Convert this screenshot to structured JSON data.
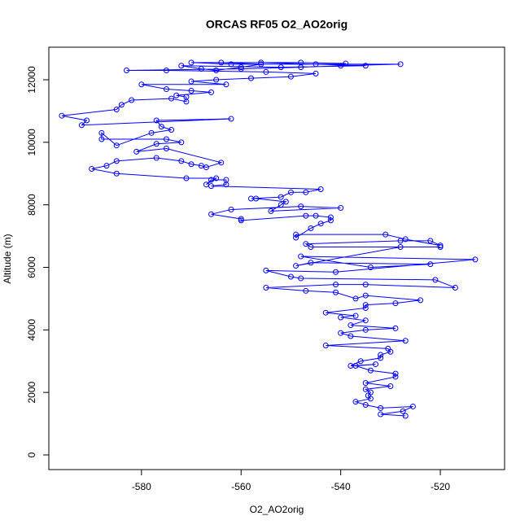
{
  "chart_data": {
    "type": "line",
    "title": "ORCAS RF05 O2_AO2orig",
    "x_label": "O2_AO2orig",
    "y_label": "Altitude (m)",
    "color": "blue",
    "markers": true,
    "xlim": [
      -598.6,
      -507.1
    ],
    "ylim": [
      -469,
      13042
    ],
    "xticks": [
      -580,
      -560,
      -540,
      -520
    ],
    "yticks": [
      0,
      2000,
      4000,
      6000,
      8000,
      10000,
      12000
    ],
    "x": [
      -527,
      -532,
      -527.5,
      -525.5,
      -532,
      -535,
      -537,
      -534,
      -534.5,
      -534,
      -535,
      -530,
      -535,
      -529,
      -529,
      -534,
      -537,
      -533,
      -538,
      -536,
      -532,
      -532,
      -530,
      -530.5,
      -543,
      -527,
      -538,
      -540,
      -535,
      -529,
      -538,
      -535,
      -540,
      -537,
      -543,
      -535,
      -535,
      -529,
      -524,
      -535,
      -537,
      -541,
      -547,
      -555,
      -541,
      -535,
      -517,
      -521,
      -548,
      -550,
      -555,
      -541,
      -513,
      -548,
      -534,
      -522,
      -546,
      -549,
      -528,
      -520,
      -546,
      -547,
      -528,
      -522,
      -520,
      -527,
      -531,
      -549,
      -549,
      -546,
      -544,
      -542,
      -542,
      -545,
      -547,
      -560,
      -560,
      -566,
      -562,
      -548,
      -540,
      -554,
      -552,
      -551,
      -557,
      -558,
      -552,
      -550,
      -547,
      -544,
      -566,
      -563,
      -563,
      -566,
      -567,
      -565,
      -571,
      -585,
      -590,
      -587,
      -585,
      -577,
      -572,
      -570,
      -568,
      -567,
      -564,
      -575,
      -581,
      -577,
      -572,
      -575,
      -588,
      -588,
      -585,
      -578,
      -574,
      -576,
      -577,
      -562,
      -592,
      -591,
      -596,
      -585,
      -584,
      -582,
      -574,
      -571,
      -571,
      -573,
      -566,
      -570,
      -575,
      -580,
      -563,
      -570,
      -565,
      -558,
      -550,
      -545,
      -555,
      -575,
      -583,
      -560,
      -548,
      -540,
      -528,
      -545,
      -562,
      -570,
      -556,
      -535,
      -552,
      -572,
      -568,
      -565,
      -560,
      -556,
      -564,
      -548,
      -539
    ],
    "values": [
      1250,
      1300,
      1400,
      1550,
      1500,
      1600,
      1700,
      1800,
      1900,
      2000,
      2100,
      2200,
      2300,
      2500,
      2600,
      2700,
      2850,
      2900,
      2850,
      3000,
      3100,
      3200,
      3300,
      3400,
      3500,
      3650,
      3800,
      3900,
      4000,
      4050,
      4150,
      4300,
      4400,
      4450,
      4550,
      4700,
      4800,
      4850,
      4950,
      5100,
      5000,
      5200,
      5250,
      5350,
      5450,
      5450,
      5350,
      5600,
      5650,
      5700,
      5900,
      5850,
      6250,
      6350,
      6000,
      6100,
      6150,
      6050,
      6650,
      6650,
      6650,
      6750,
      6850,
      6850,
      6700,
      6900,
      7050,
      7050,
      6950,
      7250,
      7400,
      7500,
      7600,
      7650,
      7650,
      7500,
      7550,
      7700,
      7850,
      7950,
      7900,
      7800,
      8000,
      8100,
      8200,
      8200,
      8250,
      8400,
      8400,
      8500,
      8600,
      8650,
      8800,
      8800,
      8650,
      8850,
      8850,
      9000,
      9150,
      9250,
      9400,
      9500,
      9400,
      9300,
      9250,
      9200,
      9350,
      9800,
      9700,
      9950,
      10000,
      10100,
      10100,
      10300,
      9900,
      10300,
      10400,
      10500,
      10700,
      10750,
      10550,
      10700,
      10850,
      11050,
      11200,
      11350,
      11400,
      11300,
      11450,
      11500,
      11600,
      11650,
      11700,
      11850,
      11850,
      11950,
      12000,
      12050,
      12100,
      12200,
      12250,
      12300,
      12300,
      12350,
      12400,
      12450,
      12500,
      12500,
      12500,
      12550,
      12550,
      12450,
      12400,
      12450,
      12350,
      12300,
      12400,
      12500,
      12550,
      12550,
      12520
    ]
  }
}
